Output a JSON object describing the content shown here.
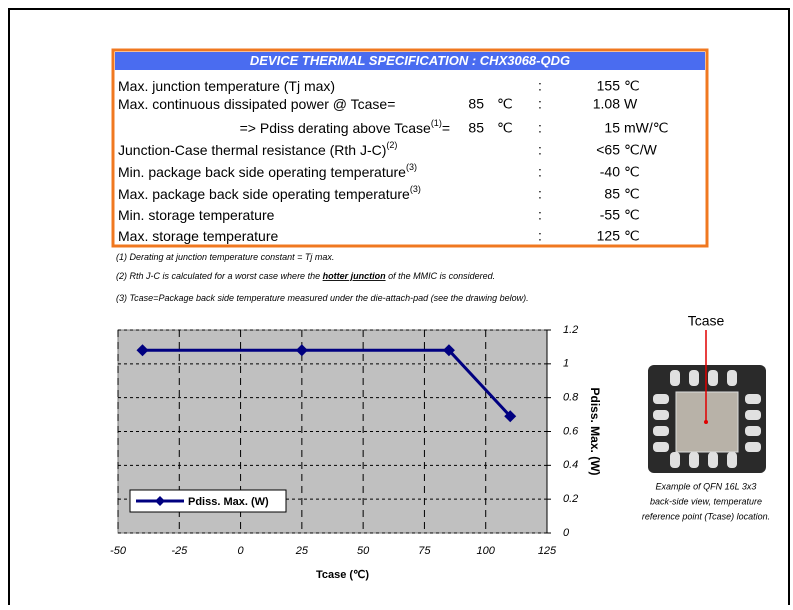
{
  "table": {
    "title": "DEVICE THERMAL SPECIFICATION : CHX3068-QDG",
    "rows": [
      {
        "label": "Max. junction temperature (Tj max)",
        "separator": ":",
        "value": "155",
        "unit": "℃"
      },
      {
        "label": "Max. continuous dissipated power @ Tcase=",
        "tcase": "85",
        "tcase_unit": "℃",
        "separator": ":",
        "value": "1.08",
        "unit": "W"
      },
      {
        "label": "=> Pdiss derating above Tcase",
        "note": "(1)",
        "suffix": "=",
        "tcase": "85",
        "tcase_unit": "℃",
        "separator": ":",
        "value": "15",
        "unit": "mW/℃"
      },
      {
        "label": "Junction-Case thermal resistance (Rth J-C)",
        "note": "(2)",
        "separator": ":",
        "value": "<65",
        "unit": "℃/W"
      },
      {
        "label": "Min. package back side operating temperature",
        "note": "(3)",
        "separator": ":",
        "value": "-40",
        "unit": "℃"
      },
      {
        "label": "Max. package back side operating temperature",
        "note": "(3)",
        "separator": ":",
        "value": "85",
        "unit": "℃"
      },
      {
        "label": "Min. storage temperature",
        "separator": ":",
        "value": "-55",
        "unit": "℃"
      },
      {
        "label": "Max. storage temperature",
        "separator": ":",
        "value": "125",
        "unit": "℃"
      }
    ]
  },
  "notes": [
    [
      "(1) Derating at junction temperature constant = Tj max."
    ],
    [
      "(2) Rth J-C is calculated for a worst case where the ",
      "hotter junction",
      " of the MMIC is considered."
    ],
    [
      "(3) Tcase=Package back side temperature measured under the die-attach-pad (see the drawing below)."
    ]
  ],
  "chart_data": {
    "type": "line",
    "x_label": "Tcase (℃)",
    "y2_label": "Pdiss. Max. (W)",
    "x": [
      -40,
      25,
      85,
      110
    ],
    "series": [
      {
        "name": "Pdiss. Max. (W)",
        "color": "#000080",
        "axis": "y2",
        "values": [
          1.08,
          1.08,
          1.08,
          0.69
        ]
      }
    ],
    "xlim": [
      -50,
      125
    ],
    "xticks": [
      -50,
      -25,
      0,
      25,
      50,
      75,
      100,
      125
    ],
    "y2lim": [
      0,
      1.2
    ],
    "y2ticks": [
      0,
      0.2,
      0.4,
      0.6,
      0.8,
      1,
      1.2
    ],
    "grid": true,
    "legend": "lower left"
  },
  "figure": {
    "label": "Tcase",
    "caption": [
      "Example of QFN 16L 3x3",
      "back-side view, temperature",
      "reference point (Tcase) location."
    ]
  }
}
